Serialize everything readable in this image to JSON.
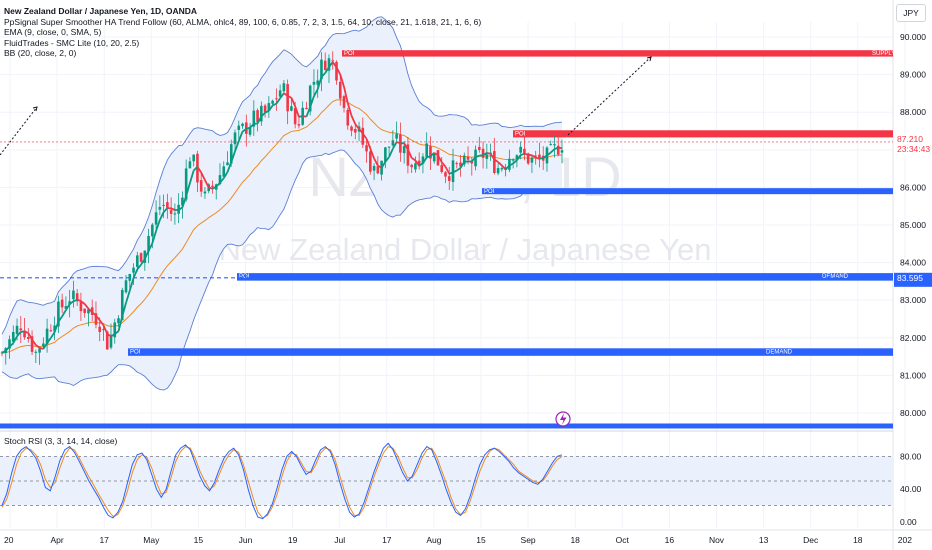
{
  "legend": {
    "title": "New Zealand Dollar / Japanese Yen, 1D, OANDA",
    "indicators": [
      "PpSignal Super Smoother HA Trend Follow (60, ALMA, ohlc4, 89, 100, 6, 0.85, 7, 2, 3, 1.5, 64, 10, close, 21, 1.618, 21, 1, 6, 6)",
      "EMA (9, close, 0, SMA, 5)",
      "FluidTrades - SMC Lite (10, 20, 2.5)",
      "BB (20, close, 2, 0)"
    ]
  },
  "currency_button": "JPY",
  "watermark": {
    "symbol": "NZDJPY, 1D",
    "name": "New Zealand Dollar / Japanese Yen"
  },
  "price_labels": {
    "current": "87.210",
    "countdown": "23:34:43",
    "demand_level": "83.595"
  },
  "zone_labels": {
    "poi": "POI",
    "supply": "SUPPLY",
    "demand": "DEMAND"
  },
  "stoch_label": "Stoch RSI (3, 3, 14, 14, close)",
  "colors": {
    "up_candle": "#089981",
    "down_candle": "#f23645",
    "supply": "#f23645",
    "demand": "#2962ff",
    "bb_line": "#5b7fd6",
    "bb_fill": "#eaf1fc",
    "ema": "#f08a24",
    "stoch_k": "#2962ff",
    "stoch_d": "#f08a24",
    "current_price": "#f23645"
  },
  "chart_data": {
    "type": "candlestick",
    "price_axis": {
      "ticks": [
        "90.000",
        "89.000",
        "88.000",
        "87.000",
        "86.000",
        "85.000",
        "84.000",
        "83.000",
        "82.000",
        "81.000",
        "80.000"
      ],
      "ylim": [
        79.6,
        90.4
      ]
    },
    "time_axis": {
      "ticks": [
        "20",
        "Apr",
        "17",
        "May",
        "15",
        "Jun",
        "19",
        "Jul",
        "17",
        "Aug",
        "15",
        "Sep",
        "18",
        "Oct",
        "16",
        "Nov",
        "13",
        "Dec",
        "18",
        "202"
      ]
    },
    "close_path": [
      [
        0,
        81.6
      ],
      [
        8,
        82.4
      ],
      [
        14,
        81.6
      ],
      [
        22,
        82.6
      ],
      [
        28,
        83.1
      ],
      [
        34,
        82.8
      ],
      [
        40,
        82.5
      ],
      [
        44,
        81.8
      ],
      [
        52,
        83.6
      ],
      [
        58,
        84.3
      ],
      [
        66,
        85.6
      ],
      [
        72,
        85.2
      ],
      [
        78,
        86.9
      ],
      [
        84,
        85.7
      ],
      [
        90,
        86.3
      ],
      [
        96,
        87.3
      ],
      [
        104,
        87.8
      ],
      [
        110,
        88.0
      ],
      [
        116,
        88.7
      ],
      [
        122,
        87.6
      ],
      [
        128,
        88.7
      ],
      [
        134,
        89.4
      ],
      [
        138,
        89.3
      ],
      [
        142,
        88.0
      ],
      [
        148,
        87.4
      ],
      [
        154,
        86.4
      ],
      [
        162,
        87.3
      ],
      [
        170,
        86.6
      ],
      [
        176,
        87.1
      ],
      [
        184,
        86.4
      ],
      [
        192,
        86.6
      ],
      [
        200,
        86.9
      ],
      [
        206,
        86.5
      ],
      [
        212,
        87.0
      ],
      [
        220,
        86.7
      ],
      [
        226,
        86.8
      ],
      [
        232,
        87.2
      ]
    ],
    "supply_zones": [
      {
        "label": "SUPPLY",
        "top": 89.65,
        "bottom": 89.48
      },
      {
        "label": "POI",
        "top": 87.52,
        "bottom": 87.33
      }
    ],
    "demand_zones": [
      {
        "label": "POI",
        "top": 85.98,
        "bottom": 85.82
      },
      {
        "label": "DEMAND",
        "top": 83.72,
        "bottom": 83.52
      },
      {
        "label": "DEMAND",
        "top": 81.72,
        "bottom": 81.52
      }
    ],
    "current_price": 87.21,
    "stoch_rsi": {
      "axis_ticks": [
        "80.00",
        "40.00",
        "0.00"
      ],
      "upper_band": 80,
      "lower_band": 20,
      "k": [
        20,
        35,
        60,
        80,
        88,
        92,
        86,
        78,
        62,
        42,
        38,
        55,
        75,
        88,
        92,
        85,
        74,
        62,
        50,
        40,
        30,
        18,
        8,
        5,
        12,
        25,
        48,
        70,
        82,
        84,
        76,
        58,
        40,
        30,
        40,
        62,
        82,
        90,
        94,
        88,
        72,
        56,
        44,
        38,
        48,
        64,
        78,
        86,
        90,
        82,
        64,
        40,
        20,
        6,
        4,
        10,
        22,
        42,
        64,
        80,
        86,
        80,
        68,
        58,
        62,
        76,
        88,
        92,
        86,
        70,
        48,
        28,
        12,
        6,
        10,
        24,
        42,
        60,
        76,
        90,
        96,
        88,
        74,
        60,
        50,
        56,
        70,
        84,
        92,
        88,
        74,
        58,
        40,
        24,
        12,
        8,
        16,
        32,
        52,
        70,
        82,
        88,
        90,
        86,
        80,
        74,
        66,
        60,
        56,
        52,
        48,
        46,
        52,
        62,
        72,
        80,
        82
      ],
      "d": [
        18,
        28,
        48,
        70,
        84,
        90,
        88,
        82,
        70,
        52,
        42,
        48,
        66,
        82,
        90,
        88,
        78,
        66,
        55,
        45,
        34,
        24,
        14,
        7,
        9,
        20,
        38,
        60,
        76,
        82,
        79,
        66,
        48,
        34,
        36,
        54,
        74,
        86,
        92,
        90,
        78,
        62,
        50,
        40,
        44,
        58,
        72,
        82,
        88,
        85,
        70,
        50,
        30,
        12,
        5,
        8,
        18,
        34,
        56,
        74,
        84,
        82,
        72,
        62,
        60,
        70,
        84,
        90,
        88,
        76,
        56,
        36,
        18,
        8,
        8,
        18,
        36,
        54,
        70,
        84,
        92,
        90,
        80,
        66,
        54,
        54,
        64,
        78,
        88,
        90,
        80,
        64,
        48,
        30,
        16,
        9,
        12,
        26,
        44,
        62,
        76,
        86,
        90,
        88,
        82,
        76,
        70,
        62,
        58,
        54,
        50,
        48,
        50,
        58,
        68,
        76,
        80
      ]
    }
  }
}
